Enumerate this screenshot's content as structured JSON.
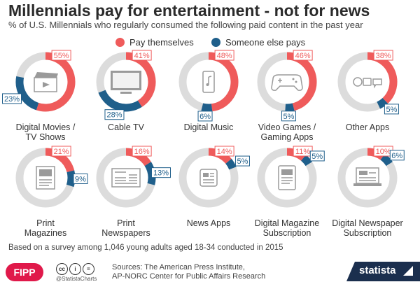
{
  "title": "Millennials pay for entertainment - not for news",
  "subtitle": "% of U.S. Millennials who regularly consumed the following paid content in the past year",
  "legend": {
    "self": "Pay themselves",
    "else": "Someone else pays"
  },
  "colors": {
    "self": "#ef5b5b",
    "else": "#1f5f8b",
    "track": "#dcdcdc",
    "icon": "#9a9a9a"
  },
  "chart_data": {
    "type": "donut-grid",
    "title": "Millennials pay for entertainment - not for news",
    "subtitle": "% of U.S. Millennials who regularly consumed the following paid content in the past year",
    "series": [
      {
        "name": "Pay themselves",
        "color": "#ef5b5b"
      },
      {
        "name": "Someone else pays",
        "color": "#1f5f8b"
      }
    ],
    "categories": [
      {
        "label": "Digital Movies /\nTV Shows",
        "icon": "clapperboard-icon",
        "pay_themselves": 55,
        "someone_else": 23
      },
      {
        "label": "Cable TV",
        "icon": "tv-icon",
        "pay_themselves": 41,
        "someone_else": 28
      },
      {
        "label": "Digital Music",
        "icon": "smartphone-icon",
        "pay_themselves": 48,
        "someone_else": 6
      },
      {
        "label": "Video Games /\nGaming Apps",
        "icon": "gamepad-icon",
        "pay_themselves": 46,
        "someone_else": 5
      },
      {
        "label": "Other Apps",
        "icon": "apps-icon",
        "pay_themselves": 38,
        "someone_else": 5
      },
      {
        "label": "Print\nMagazines",
        "icon": "magazine-icon",
        "pay_themselves": 21,
        "someone_else": 9
      },
      {
        "label": "Print\nNewspapers",
        "icon": "newspaper-icon",
        "pay_themselves": 16,
        "someone_else": 13
      },
      {
        "label": "News Apps",
        "icon": "news-app-icon",
        "pay_themselves": 14,
        "someone_else": 5
      },
      {
        "label": "Digital Magazine\nSubscription",
        "icon": "tablet-icon",
        "pay_themselves": 11,
        "someone_else": 5
      },
      {
        "label": "Digital Newspaper\nSubscription",
        "icon": "laptop-news-icon",
        "pay_themselves": 10,
        "someone_else": 6
      }
    ]
  },
  "footnote": "Based on a survey among 1,046 young adults aged 18-34 conducted in 2015",
  "footer": {
    "fipp": "FIPP",
    "handle": "@StatistaCharts",
    "cc_icons": [
      "cc",
      "i",
      "="
    ],
    "sources": "Sources: The American Press Institute,\nAP-NORC Center for Public Affairs Research",
    "brand": "statista"
  }
}
